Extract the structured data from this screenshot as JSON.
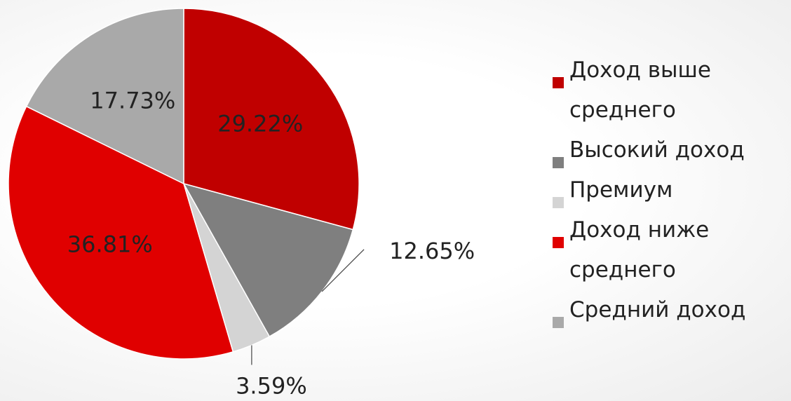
{
  "chart_data": {
    "type": "pie",
    "categories": [
      "Доход выше среднего",
      "Высокий доход",
      "Премиум",
      "Доход ниже среднего",
      "Средний доход"
    ],
    "values": [
      29.22,
      12.65,
      3.59,
      36.81,
      17.73
    ],
    "value_labels": [
      "29.22%",
      "12.65%",
      "3.59%",
      "36.81%",
      "17.73%"
    ],
    "colors": [
      "#c00000",
      "#7f7f7f",
      "#d4d4d4",
      "#e00000",
      "#a9a9a9"
    ],
    "legend": "right"
  }
}
